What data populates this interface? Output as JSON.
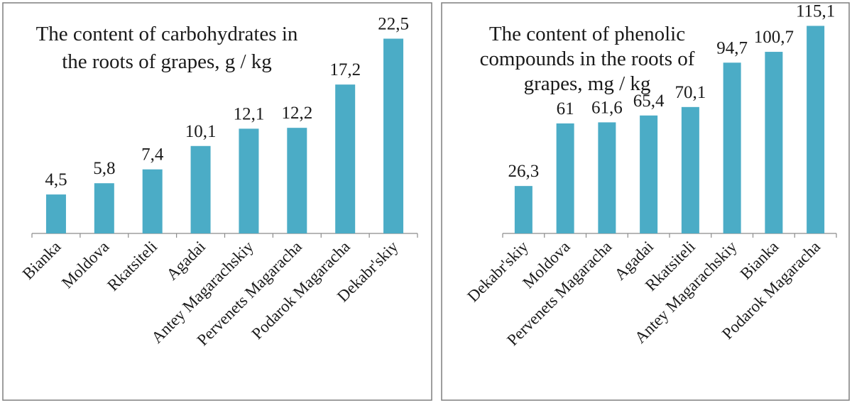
{
  "bar_color": "#4BACC6",
  "axis_color": "#8C8C8C",
  "frame_color": "#7F7F7F",
  "chart_data": [
    {
      "type": "bar",
      "title_lines": [
        "The content of carbohydrates in",
        "the roots of grapes, g / kg"
      ],
      "categories": [
        "Bianka",
        "Moldova",
        "Rkatsiteli",
        "Agadai",
        "Antey Magarachskiy",
        "Pervenets Magaracha",
        "Podarok Magaracha",
        "Dekabr'skiy"
      ],
      "values": [
        4.5,
        5.8,
        7.4,
        10.1,
        12.1,
        12.2,
        17.2,
        22.5
      ],
      "labels": [
        "4,5",
        "5,8",
        "7,4",
        "10,1",
        "12,1",
        "12,2",
        "17,2",
        "22,5"
      ],
      "ylim": [
        0,
        25
      ],
      "xlabel": "",
      "ylabel": ""
    },
    {
      "type": "bar",
      "title_lines": [
        "The content of phenolic",
        "compounds in the roots of",
        "grapes, mg / kg"
      ],
      "categories": [
        "Dekabr'skiy",
        "Moldova",
        "Pervenets Magaracha",
        "Agadai",
        "Rkatsiteli",
        "Antey Magarachskiy",
        "Bianka",
        "Podarok Magaracha"
      ],
      "values": [
        26.3,
        61,
        61.6,
        65.4,
        70.1,
        94.7,
        100.7,
        115.1
      ],
      "labels": [
        "26,3",
        "61",
        "61,6",
        "65,4",
        "70,1",
        "94,7",
        "100,7",
        "115,1"
      ],
      "ylim": [
        0,
        120
      ],
      "xlabel": "",
      "ylabel": ""
    }
  ]
}
